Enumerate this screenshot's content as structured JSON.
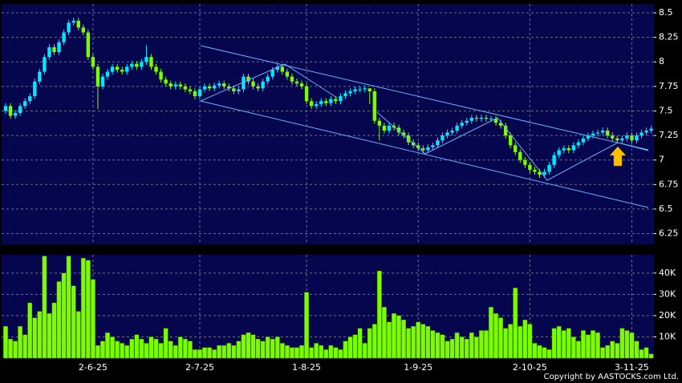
{
  "copyright": "Copyright by AASTOCKS.com Ltd.",
  "chart_data": [
    {
      "type": "candlestick",
      "grid": true,
      "up_color": "#00e8ff",
      "down_color": "#7cfc00",
      "ylim": [
        6.14,
        8.59
      ],
      "yticks": [
        8.5,
        8.25,
        8,
        7.75,
        7.5,
        7.25,
        7,
        6.75,
        6.5,
        6.25
      ],
      "open": [
        7.5,
        7.55,
        7.45,
        7.48,
        7.55,
        7.6,
        7.65,
        7.8,
        7.9,
        8.05,
        8.15,
        8.1,
        8.2,
        8.3,
        8.4,
        8.42,
        8.35,
        8.3,
        8.05,
        7.95,
        7.75,
        7.85,
        7.9,
        7.95,
        7.92,
        7.9,
        7.95,
        7.98,
        7.95,
        8.0,
        8.05,
        7.95,
        7.9,
        7.82,
        7.78,
        7.75,
        7.77,
        7.75,
        7.72,
        7.7,
        7.65,
        7.72,
        7.75,
        7.73,
        7.76,
        7.78,
        7.75,
        7.73,
        7.7,
        7.72,
        7.85,
        7.8,
        7.75,
        7.73,
        7.8,
        7.85,
        7.92,
        7.95,
        7.9,
        7.85,
        7.8,
        7.78,
        7.75,
        7.6,
        7.55,
        7.57,
        7.6,
        7.58,
        7.62,
        7.6,
        7.65,
        7.68,
        7.7,
        7.72,
        7.72,
        7.73,
        7.7,
        7.4,
        7.35,
        7.3,
        7.35,
        7.33,
        7.28,
        7.25,
        7.18,
        7.15,
        7.12,
        7.1,
        7.13,
        7.15,
        7.2,
        7.25,
        7.28,
        7.3,
        7.35,
        7.38,
        7.4,
        7.43,
        7.42,
        7.43,
        7.42,
        7.42,
        7.38,
        7.35,
        7.25,
        7.15,
        7.08,
        7.0,
        6.95,
        6.9,
        6.88,
        6.85,
        6.88,
        6.95,
        7.05,
        7.1,
        7.12,
        7.1,
        7.15,
        7.18,
        7.22,
        7.25,
        7.27,
        7.28,
        7.3,
        7.25,
        7.22,
        7.2,
        7.22,
        7.25,
        7.2,
        7.25,
        7.28,
        7.3
      ],
      "high": [
        7.58,
        7.58,
        7.51,
        7.58,
        7.63,
        7.68,
        7.83,
        7.93,
        8.08,
        8.18,
        8.18,
        8.23,
        8.33,
        8.43,
        8.45,
        8.45,
        8.38,
        8.33,
        8.08,
        7.98,
        7.88,
        7.93,
        7.98,
        7.98,
        7.95,
        7.98,
        8.01,
        8.01,
        8.03,
        8.17,
        8.08,
        7.98,
        7.93,
        7.85,
        7.81,
        7.8,
        7.8,
        7.78,
        7.75,
        7.73,
        7.75,
        7.78,
        7.78,
        7.79,
        7.81,
        7.81,
        7.78,
        7.76,
        7.75,
        7.88,
        7.88,
        7.83,
        7.78,
        7.83,
        7.88,
        7.95,
        7.98,
        7.98,
        7.93,
        7.88,
        7.83,
        7.81,
        7.78,
        7.63,
        7.6,
        7.63,
        7.63,
        7.65,
        7.65,
        7.68,
        7.71,
        7.73,
        7.75,
        7.75,
        7.76,
        7.73,
        7.73,
        7.43,
        7.38,
        7.38,
        7.38,
        7.36,
        7.31,
        7.28,
        7.21,
        7.18,
        7.15,
        7.16,
        7.18,
        7.23,
        7.28,
        7.31,
        7.33,
        7.38,
        7.41,
        7.43,
        7.46,
        7.46,
        7.46,
        7.46,
        7.45,
        7.45,
        7.41,
        7.38,
        7.28,
        7.18,
        7.11,
        7.03,
        6.98,
        6.93,
        6.91,
        6.91,
        6.98,
        7.08,
        7.13,
        7.15,
        7.15,
        7.18,
        7.21,
        7.25,
        7.28,
        7.3,
        7.31,
        7.33,
        7.33,
        7.28,
        7.25,
        7.25,
        7.28,
        7.28,
        7.28,
        7.31,
        7.33,
        7.35
      ],
      "low": [
        7.47,
        7.42,
        7.42,
        7.45,
        7.52,
        7.57,
        7.62,
        7.77,
        7.87,
        8.02,
        8.07,
        8.07,
        8.17,
        8.27,
        8.37,
        8.32,
        8.27,
        8.02,
        7.92,
        7.52,
        7.72,
        7.82,
        7.87,
        7.89,
        7.87,
        7.87,
        7.92,
        7.92,
        7.92,
        7.97,
        7.92,
        7.87,
        7.79,
        7.75,
        7.72,
        7.72,
        7.72,
        7.69,
        7.67,
        7.62,
        7.62,
        7.69,
        7.7,
        7.7,
        7.73,
        7.72,
        7.7,
        7.67,
        7.67,
        7.69,
        7.77,
        7.72,
        7.7,
        7.7,
        7.77,
        7.82,
        7.89,
        7.87,
        7.82,
        7.77,
        7.75,
        7.72,
        7.57,
        7.52,
        7.52,
        7.54,
        7.55,
        7.55,
        7.57,
        7.57,
        7.62,
        7.65,
        7.67,
        7.69,
        7.69,
        7.57,
        7.37,
        7.2,
        7.27,
        7.27,
        7.3,
        7.25,
        7.22,
        7.15,
        7.12,
        7.09,
        7.07,
        7.07,
        7.1,
        7.12,
        7.17,
        7.22,
        7.25,
        7.27,
        7.32,
        7.35,
        7.37,
        7.39,
        7.39,
        7.39,
        7.39,
        7.35,
        7.32,
        7.22,
        7.12,
        7.05,
        6.97,
        6.92,
        6.87,
        6.85,
        6.82,
        6.82,
        6.85,
        6.92,
        7.02,
        7.07,
        7.07,
        7.07,
        7.12,
        7.15,
        7.19,
        7.22,
        7.24,
        7.25,
        7.22,
        7.19,
        7.17,
        7.17,
        7.19,
        7.17,
        7.17,
        7.22,
        7.25,
        7.27
      ],
      "close": [
        7.55,
        7.45,
        7.48,
        7.55,
        7.6,
        7.65,
        7.8,
        7.9,
        8.05,
        8.15,
        8.1,
        8.2,
        8.3,
        8.4,
        8.42,
        8.35,
        8.3,
        8.05,
        7.95,
        7.75,
        7.85,
        7.9,
        7.95,
        7.92,
        7.9,
        7.95,
        7.98,
        7.95,
        8.0,
        8.05,
        7.95,
        7.9,
        7.82,
        7.78,
        7.75,
        7.77,
        7.75,
        7.72,
        7.7,
        7.65,
        7.72,
        7.75,
        7.73,
        7.76,
        7.78,
        7.75,
        7.73,
        7.7,
        7.72,
        7.85,
        7.8,
        7.75,
        7.73,
        7.8,
        7.85,
        7.92,
        7.95,
        7.9,
        7.85,
        7.8,
        7.78,
        7.75,
        7.6,
        7.55,
        7.57,
        7.6,
        7.58,
        7.62,
        7.6,
        7.65,
        7.68,
        7.7,
        7.72,
        7.72,
        7.73,
        7.7,
        7.4,
        7.35,
        7.3,
        7.35,
        7.33,
        7.28,
        7.25,
        7.18,
        7.15,
        7.12,
        7.1,
        7.13,
        7.15,
        7.2,
        7.25,
        7.28,
        7.3,
        7.35,
        7.38,
        7.4,
        7.43,
        7.42,
        7.43,
        7.42,
        7.42,
        7.38,
        7.35,
        7.25,
        7.15,
        7.08,
        7.0,
        6.95,
        6.9,
        6.88,
        6.85,
        6.88,
        6.95,
        7.05,
        7.1,
        7.12,
        7.1,
        7.15,
        7.18,
        7.22,
        7.25,
        7.27,
        7.28,
        7.3,
        7.25,
        7.22,
        7.2,
        7.22,
        7.25,
        7.2,
        7.25,
        7.28,
        7.3,
        7.32
      ]
    },
    {
      "type": "bar",
      "color": "#7cfc00",
      "grid": true,
      "ylim": [
        0,
        48600
      ],
      "yticks": [
        {
          "value": 40000,
          "label": "40K"
        },
        {
          "value": 30000,
          "label": "30K"
        },
        {
          "value": 20000,
          "label": "20K"
        },
        {
          "value": 10000,
          "label": "10K"
        }
      ],
      "categories": [
        null,
        null,
        null,
        null,
        null,
        null,
        null,
        null,
        null,
        null,
        null,
        null,
        null,
        null,
        null,
        null,
        null,
        null,
        "2-6-25",
        null,
        null,
        null,
        null,
        null,
        null,
        null,
        null,
        null,
        null,
        null,
        null,
        null,
        null,
        null,
        null,
        null,
        null,
        null,
        null,
        null,
        "2-7-25",
        null,
        null,
        null,
        null,
        null,
        null,
        null,
        null,
        null,
        null,
        null,
        null,
        null,
        null,
        null,
        null,
        null,
        null,
        null,
        null,
        null,
        "1-8-25",
        null,
        null,
        null,
        null,
        null,
        null,
        null,
        null,
        null,
        null,
        null,
        null,
        null,
        null,
        null,
        null,
        null,
        null,
        null,
        null,
        null,
        null,
        "1-9-25",
        null,
        null,
        null,
        null,
        null,
        null,
        null,
        null,
        null,
        null,
        null,
        null,
        null,
        null,
        null,
        null,
        null,
        null,
        null,
        null,
        null,
        null,
        "2-10-25",
        null,
        null,
        null,
        null,
        null,
        null,
        null,
        null,
        null,
        null,
        null,
        null,
        null,
        null,
        null,
        null,
        null,
        null,
        null,
        null,
        "3-11-25",
        null,
        null,
        null,
        null
      ],
      "values": [
        15000,
        9000,
        8000,
        15000,
        11000,
        26000,
        19000,
        22000,
        48000,
        21000,
        26000,
        36000,
        40000,
        48000,
        34000,
        22000,
        47000,
        46000,
        37000,
        6000,
        8000,
        12000,
        10000,
        8000,
        7000,
        6000,
        9000,
        11000,
        9000,
        7000,
        10000,
        9000,
        7000,
        14000,
        8000,
        6000,
        10000,
        9000,
        8000,
        4000,
        4000,
        5000,
        5000,
        4000,
        6000,
        6000,
        7000,
        6000,
        8000,
        11000,
        12000,
        11000,
        9000,
        8000,
        10000,
        9000,
        10000,
        7000,
        6000,
        5000,
        5000,
        6000,
        31000,
        5000,
        7000,
        6000,
        4000,
        6000,
        5000,
        4000,
        8000,
        10000,
        11000,
        14000,
        7000,
        14000,
        16000,
        41000,
        24000,
        17000,
        21000,
        20000,
        18000,
        14000,
        15000,
        17000,
        16000,
        15000,
        13000,
        12000,
        11000,
        8000,
        9000,
        12000,
        10000,
        9000,
        12000,
        10000,
        13000,
        13000,
        24000,
        21000,
        19000,
        14000,
        16000,
        33000,
        15000,
        18000,
        16000,
        7000,
        6000,
        5000,
        4000,
        14000,
        15000,
        13000,
        14000,
        10000,
        8000,
        13000,
        11000,
        13000,
        12000,
        5000,
        6000,
        8000,
        7000,
        14000,
        13000,
        12000,
        8000,
        4000,
        5000,
        2000
      ]
    }
  ]
}
